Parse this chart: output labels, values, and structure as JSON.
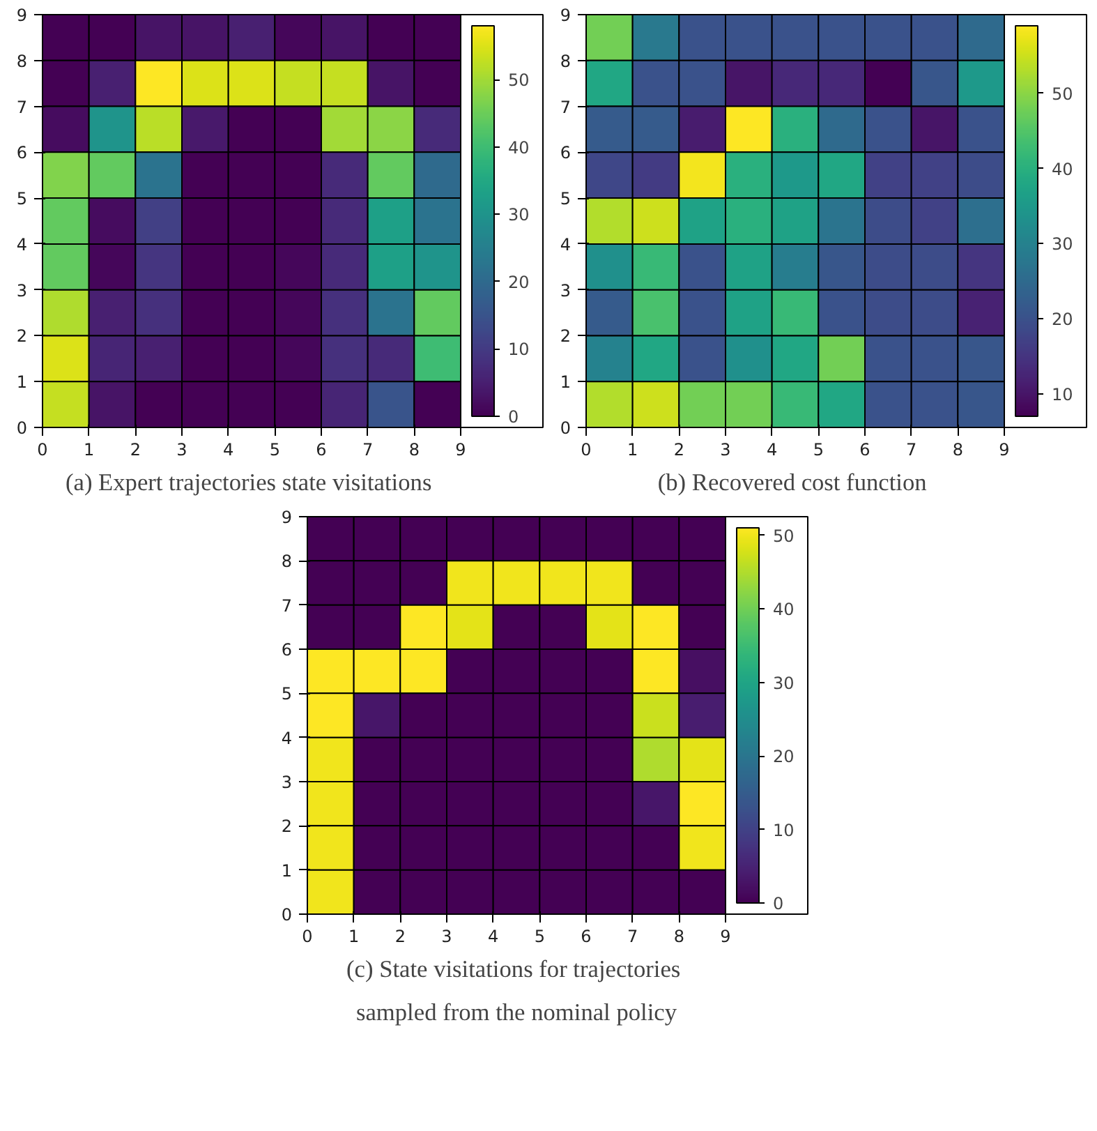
{
  "chart_data": [
    {
      "type": "heatmap",
      "title": "(a)  Expert trajectories state visitations",
      "xlim": [
        0,
        9
      ],
      "ylim": [
        0,
        9
      ],
      "xticks": [
        0,
        1,
        2,
        3,
        4,
        5,
        6,
        7,
        8,
        9
      ],
      "yticks": [
        0,
        1,
        2,
        3,
        4,
        5,
        6,
        7,
        8,
        9
      ],
      "clim": [
        0,
        58
      ],
      "cticks": [
        0,
        10,
        20,
        30,
        40,
        50
      ],
      "cells": [
        [
          0,
          0,
          3,
          3,
          5,
          1,
          3,
          0,
          0
        ],
        [
          0,
          5,
          58,
          55,
          55,
          53,
          53,
          3,
          0
        ],
        [
          2,
          30,
          52,
          4,
          0,
          0,
          50,
          48,
          7
        ],
        [
          47,
          44,
          22,
          0,
          0,
          0,
          7,
          44,
          20
        ],
        [
          44,
          2,
          11,
          0,
          0,
          0,
          7,
          33,
          22
        ],
        [
          44,
          1,
          9,
          0,
          0,
          1,
          7,
          33,
          30
        ],
        [
          51,
          5,
          8,
          0,
          0,
          1,
          8,
          22,
          44
        ],
        [
          55,
          6,
          5,
          0,
          0,
          1,
          8,
          7,
          40
        ],
        [
          53,
          3,
          0,
          0,
          0,
          0,
          6,
          15,
          0
        ]
      ]
    },
    {
      "type": "heatmap",
      "title": "(b)  Recovered cost function",
      "xlim": [
        0,
        9
      ],
      "ylim": [
        0,
        9
      ],
      "xticks": [
        0,
        1,
        2,
        3,
        4,
        5,
        6,
        7,
        8,
        9
      ],
      "yticks": [
        0,
        1,
        2,
        3,
        4,
        5,
        6,
        7,
        8,
        9
      ],
      "clim": [
        7,
        59
      ],
      "cticks": [
        10,
        20,
        30,
        40,
        50
      ],
      "cells": [
        [
          48,
          28,
          20,
          20,
          20,
          20,
          20,
          20,
          25
        ],
        [
          38,
          20,
          20,
          10,
          13,
          13,
          7,
          21,
          35
        ],
        [
          22,
          22,
          11,
          59,
          40,
          25,
          20,
          10,
          20
        ],
        [
          18,
          16,
          58,
          40,
          35,
          38,
          17,
          17,
          19
        ],
        [
          53,
          55,
          37,
          40,
          37,
          27,
          19,
          17,
          26
        ],
        [
          33,
          42,
          20,
          37,
          29,
          21,
          19,
          19,
          15
        ],
        [
          22,
          44,
          20,
          37,
          42,
          20,
          19,
          19,
          12
        ],
        [
          30,
          38,
          20,
          33,
          38,
          48,
          20,
          20,
          21
        ],
        [
          53,
          55,
          48,
          48,
          42,
          38,
          20,
          20,
          21
        ]
      ]
    },
    {
      "type": "heatmap",
      "title": "(c)  State visitations for trajectories sampled from the nominal policy",
      "xlim": [
        0,
        9
      ],
      "ylim": [
        0,
        9
      ],
      "xticks": [
        0,
        1,
        2,
        3,
        4,
        5,
        6,
        7,
        8,
        9
      ],
      "yticks": [
        0,
        1,
        2,
        3,
        4,
        5,
        6,
        7,
        8,
        9
      ],
      "clim": [
        0,
        51
      ],
      "cticks": [
        0,
        10,
        20,
        30,
        40,
        50
      ],
      "cells": [
        [
          0,
          0,
          0,
          0,
          0,
          0,
          0,
          0,
          0
        ],
        [
          0,
          0,
          0,
          50,
          50,
          50,
          50,
          0,
          0
        ],
        [
          0,
          0,
          51,
          49,
          0,
          0,
          49,
          51,
          0
        ],
        [
          51,
          51,
          51,
          0,
          0,
          0,
          0,
          51,
          2
        ],
        [
          51,
          3,
          0,
          0,
          0,
          0,
          0,
          47,
          4
        ],
        [
          50,
          0,
          0,
          0,
          0,
          0,
          0,
          45,
          49
        ],
        [
          50,
          0,
          0,
          0,
          0,
          0,
          0,
          3,
          51
        ],
        [
          50,
          0,
          0,
          0,
          0,
          0,
          0,
          0,
          50
        ],
        [
          50,
          0,
          0,
          0,
          0,
          0,
          0,
          0,
          0
        ]
      ]
    }
  ]
}
